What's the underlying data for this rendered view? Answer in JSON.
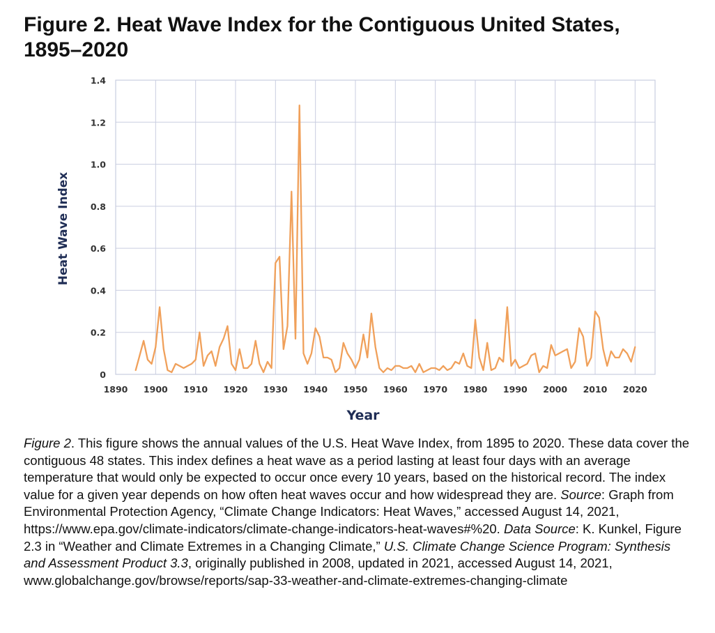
{
  "figure": {
    "title_line1": "Figure 2. Heat Wave Index for the Contiguous United States,",
    "title_line2": "1895–2020"
  },
  "chart_data": {
    "type": "line",
    "xlabel": "Year",
    "ylabel": "Heat Wave Index",
    "xlim": [
      1890,
      2025
    ],
    "ylim": [
      0,
      1.4
    ],
    "x_ticks": [
      "1890",
      "1900",
      "1910",
      "1920",
      "1930",
      "1940",
      "1950",
      "1960",
      "1970",
      "1980",
      "1990",
      "2000",
      "2010",
      "2020"
    ],
    "y_ticks": [
      "0",
      "0.2",
      "0.4",
      "0.6",
      "0.8",
      "1.0",
      "1.2",
      "1.4"
    ],
    "grid": true,
    "colors": {
      "line": "#f0a05a",
      "grid": "#c9cde0",
      "plot_bg": "#ffffff",
      "tick_text": "#333333",
      "axis_label": "#1f2d55"
    },
    "series": [
      {
        "x": [
          1895,
          1896,
          1897,
          1898,
          1899,
          1900,
          1901,
          1902,
          1903,
          1904,
          1905,
          1906,
          1907,
          1908,
          1909,
          1910,
          1911,
          1912,
          1913,
          1914,
          1915,
          1916,
          1917,
          1918,
          1919,
          1920,
          1921,
          1922,
          1923,
          1924,
          1925,
          1926,
          1927,
          1928,
          1929,
          1930,
          1931,
          1932,
          1933,
          1934,
          1935,
          1936,
          1937,
          1938,
          1939,
          1940,
          1941,
          1942,
          1943,
          1944,
          1945,
          1946,
          1947,
          1948,
          1949,
          1950,
          1951,
          1952,
          1953,
          1954,
          1955,
          1956,
          1957,
          1958,
          1959,
          1960,
          1961,
          1962,
          1963,
          1964,
          1965,
          1966,
          1967,
          1968,
          1969,
          1970,
          1971,
          1972,
          1973,
          1974,
          1975,
          1976,
          1977,
          1978,
          1979,
          1980,
          1981,
          1982,
          1983,
          1984,
          1985,
          1986,
          1987,
          1988,
          1989,
          1990,
          1991,
          1992,
          1993,
          1994,
          1995,
          1996,
          1997,
          1998,
          1999,
          2000,
          2001,
          2002,
          2003,
          2004,
          2005,
          2006,
          2007,
          2008,
          2009,
          2010,
          2011,
          2012,
          2013,
          2014,
          2015,
          2016,
          2017,
          2018,
          2019,
          2020
        ],
        "y": [
          0.02,
          0.09,
          0.16,
          0.07,
          0.05,
          0.13,
          0.32,
          0.12,
          0.02,
          0.01,
          0.05,
          0.04,
          0.03,
          0.04,
          0.05,
          0.07,
          0.2,
          0.04,
          0.09,
          0.11,
          0.04,
          0.13,
          0.17,
          0.23,
          0.05,
          0.02,
          0.12,
          0.03,
          0.03,
          0.05,
          0.16,
          0.05,
          0.01,
          0.06,
          0.03,
          0.53,
          0.56,
          0.12,
          0.23,
          0.87,
          0.17,
          1.28,
          0.1,
          0.05,
          0.1,
          0.22,
          0.18,
          0.08,
          0.08,
          0.07,
          0.01,
          0.03,
          0.15,
          0.1,
          0.07,
          0.03,
          0.07,
          0.19,
          0.08,
          0.29,
          0.13,
          0.03,
          0.01,
          0.03,
          0.02,
          0.04,
          0.04,
          0.03,
          0.03,
          0.04,
          0.01,
          0.05,
          0.01,
          0.02,
          0.03,
          0.03,
          0.02,
          0.04,
          0.02,
          0.03,
          0.06,
          0.05,
          0.1,
          0.04,
          0.03,
          0.26,
          0.08,
          0.02,
          0.15,
          0.02,
          0.03,
          0.08,
          0.06,
          0.32,
          0.04,
          0.07,
          0.03,
          0.04,
          0.05,
          0.09,
          0.1,
          0.01,
          0.04,
          0.03,
          0.14,
          0.09,
          0.1,
          0.11,
          0.12,
          0.03,
          0.06,
          0.22,
          0.18,
          0.04,
          0.08,
          0.3,
          0.27,
          0.12,
          0.04,
          0.11,
          0.08,
          0.08,
          0.12,
          0.1,
          0.06,
          0.13
        ]
      }
    ]
  },
  "caption": {
    "fig_label": "Figure 2",
    "text1": ". This figure shows the annual values of the U.S. Heat Wave Index, from 1895 to 2020. These data cover the contiguous 48 states. This index defines a heat wave as a period lasting at least four days with an average temperature that would only be expected to occur once every 10 years, based on the historical record. The index value for a given year depends on how often heat waves occur and how widespread they are. ",
    "source_label": "Source",
    "text2": ": Graph from Environmental Protection Agency, “Climate Change Indicators: Heat Waves,” accessed August 14, 2021, https://www.epa.gov/climate-indicators/climate-change-indicators-heat-waves#%20. ",
    "data_source_label": "Data Source",
    "text3": ": K. Kunkel, Figure 2.3 in “Weather and Climate Extremes in a Changing Climate,” ",
    "publication": "U.S. Climate Change Science Program: Synthesis and Assessment Product 3.3",
    "text4": ", originally published in 2008, updated in 2021, accessed August 14, 2021, www.globalchange.gov/browse/reports/sap-33-weather-and-climate-extremes-changing-climate"
  }
}
